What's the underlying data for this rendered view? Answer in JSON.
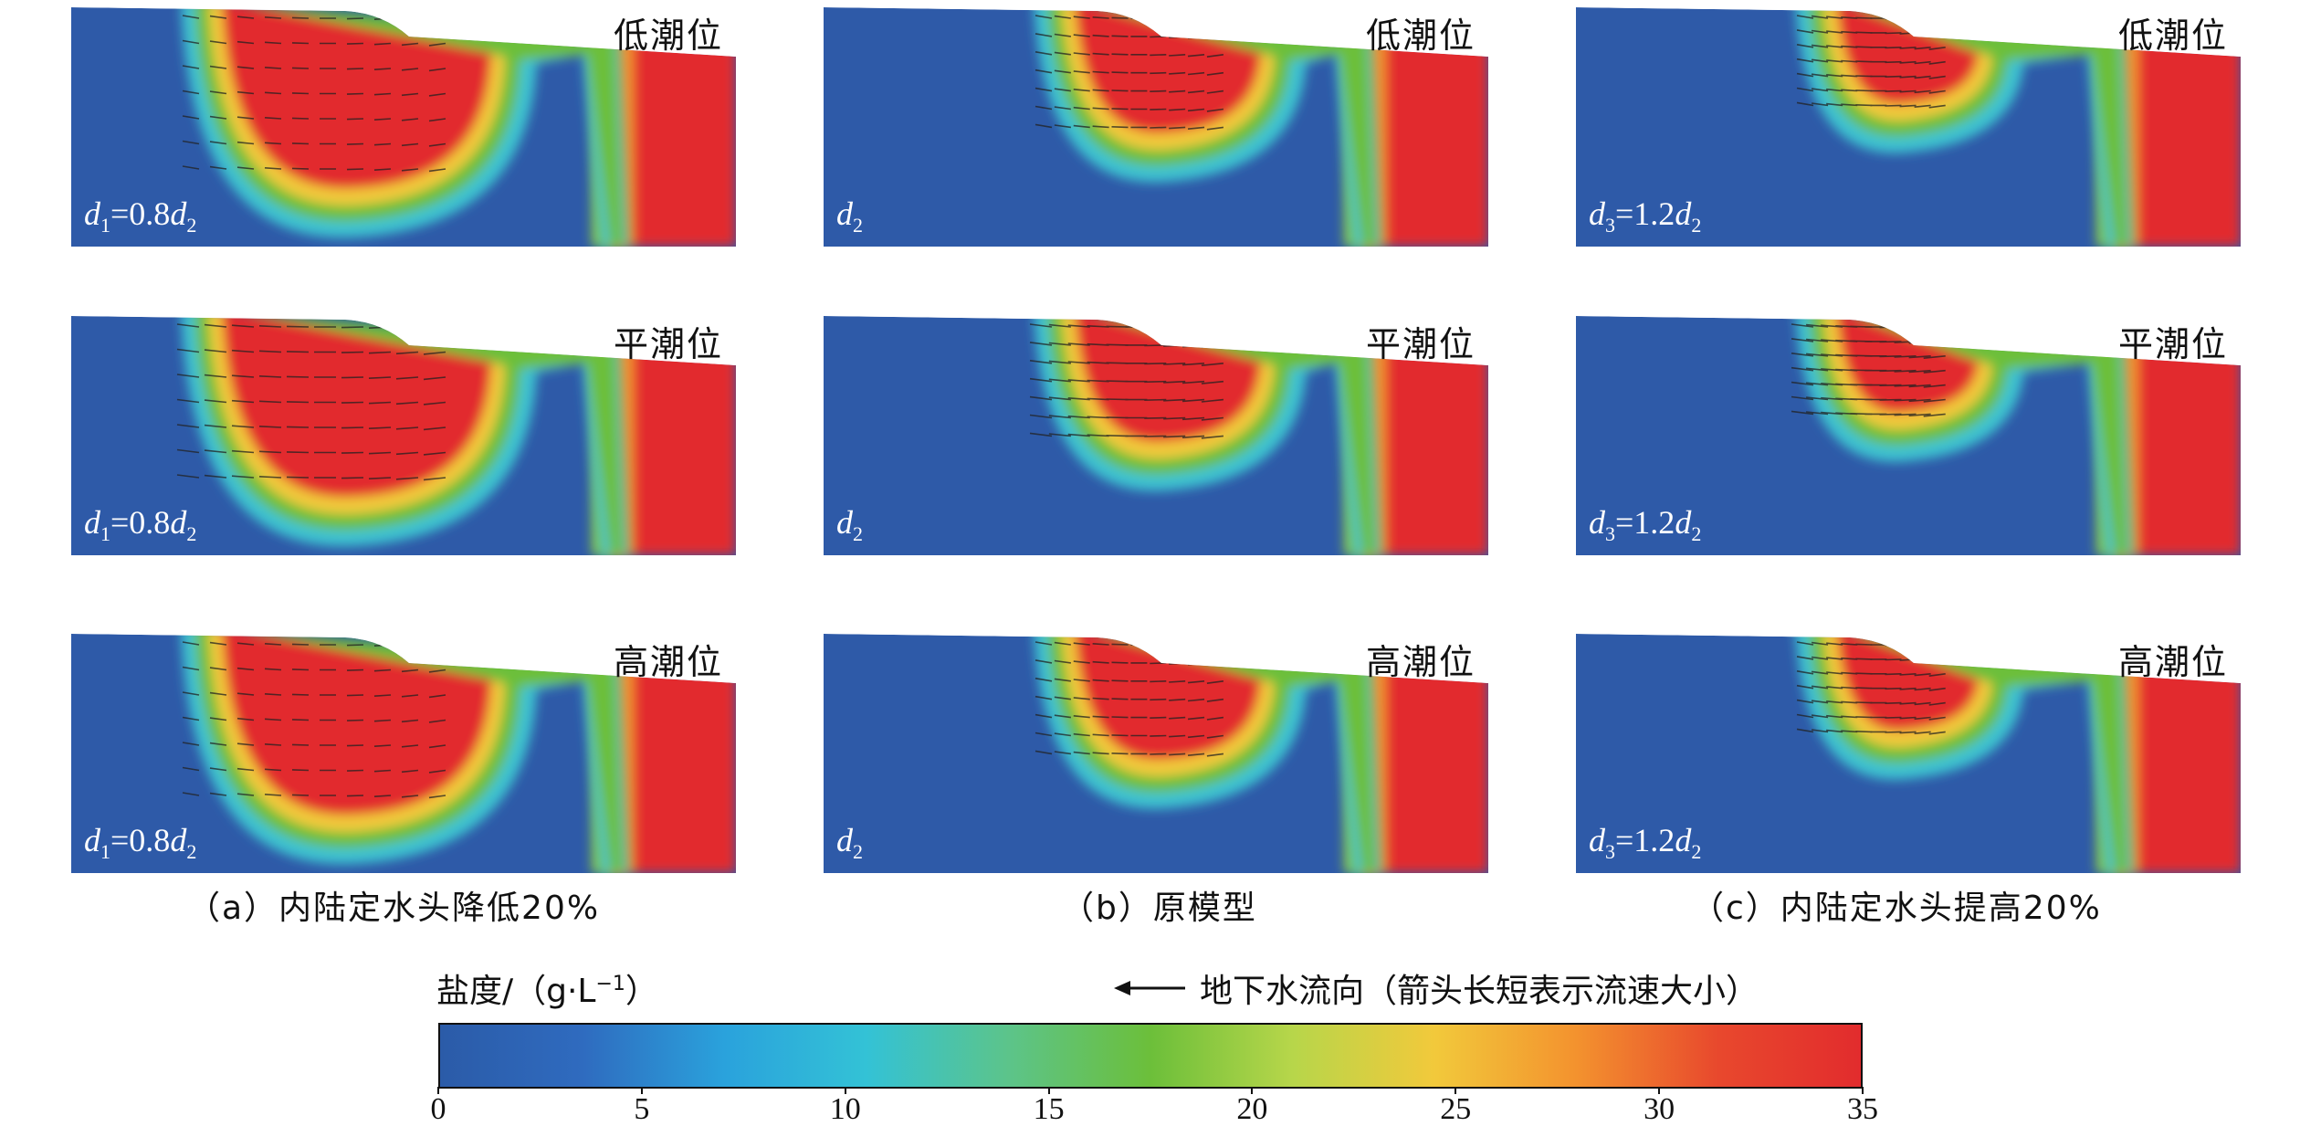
{
  "chart_data": {
    "type": "heatmap",
    "description_units": "salinity g/L",
    "colorbar": {
      "title": "盐度/（g·L",
      "title_sup": "−1",
      "title_end": "）",
      "min": 0,
      "max": 35,
      "ticks": [
        "0",
        "5",
        "10",
        "15",
        "20",
        "25",
        "30",
        "35"
      ],
      "colors": [
        "#2b5ba8",
        "#2f6bbf",
        "#2aa2dc",
        "#33c2d6",
        "#5cc48a",
        "#6cbf3a",
        "#b7d64a",
        "#f2c93b",
        "#f3922e",
        "#e8482d",
        "#e22c2d"
      ]
    },
    "flow_note": "地下水流向（箭头长短表示流速大小）",
    "columns": [
      {
        "caption": "（a）内陆定水头降低20%",
        "depth_label": "d1=0.8d2",
        "depth_var": "d",
        "depth_sub": "1",
        "depth_rest": "=0.8",
        "depth_var2": "d",
        "depth_sub2": "2"
      },
      {
        "caption": "（b）原模型",
        "depth_label": "d2",
        "depth_var": "d",
        "depth_sub": "2",
        "depth_rest": "",
        "depth_var2": "",
        "depth_sub2": ""
      },
      {
        "caption": "（c）内陆定水头提高20%",
        "depth_label": "d3=1.2d2",
        "depth_var": "d",
        "depth_sub": "3",
        "depth_rest": "=1.2",
        "depth_var2": "d",
        "depth_sub2": "2"
      }
    ],
    "rows": [
      {
        "tide": "低潮位"
      },
      {
        "tide": "平潮位"
      },
      {
        "tide": "高潮位"
      }
    ]
  }
}
